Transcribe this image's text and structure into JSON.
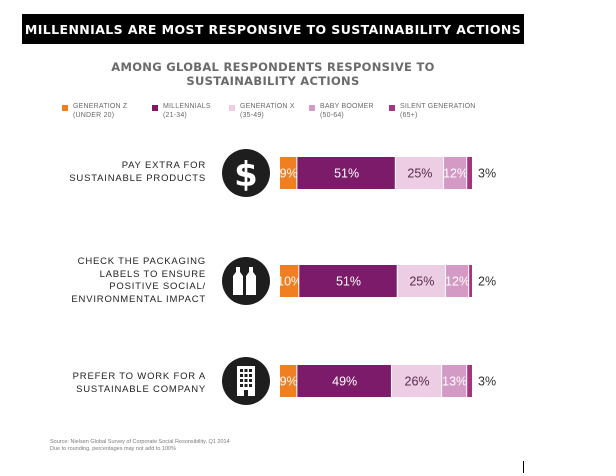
{
  "title": "MILLENNIALS ARE MOST RESPONSIVE TO SUSTAINABILITY ACTIONS",
  "subtitle_lines": [
    "AMONG GLOBAL RESPONDENTS RESPONSIVE TO",
    "SUSTAINABILITY ACTIONS"
  ],
  "legend": [
    {
      "name": "GENERATION Z",
      "range": "(UNDER 20)",
      "color": "#f07f22"
    },
    {
      "name": "MILLENNIALS",
      "range": "(21-34)",
      "color": "#7d1b6b"
    },
    {
      "name": "GENERATION X",
      "range": "(35-49)",
      "color": "#eccde3"
    },
    {
      "name": "BABY BOOMER",
      "range": "(50-64)",
      "color": "#d49ac6"
    },
    {
      "name": "SILENT GENERATION",
      "range": "(65+)",
      "color": "#a4357e"
    }
  ],
  "rows": [
    {
      "label_lines": [
        "PAY EXTRA FOR",
        "SUSTAINABLE PRODUCTS"
      ],
      "icon": "dollar-icon"
    },
    {
      "label_lines": [
        "CHECK THE PACKAGING",
        "LABELS TO ENSURE",
        "POSITIVE SOCIAL/",
        "ENVIRONMENTAL IMPACT"
      ],
      "icon": "bottles-icon"
    },
    {
      "label_lines": [
        "PREFER TO WORK FOR A",
        "SUSTAINABLE COMPANY"
      ],
      "icon": "building-icon"
    }
  ],
  "chart_data": {
    "type": "bar",
    "orientation": "horizontal",
    "stacked": true,
    "categories": [
      "PAY EXTRA FOR SUSTAINABLE PRODUCTS",
      "CHECK THE PACKAGING LABELS TO ENSURE POSITIVE SOCIAL/ ENVIRONMENTAL IMPACT",
      "PREFER TO WORK FOR A SUSTAINABLE COMPANY"
    ],
    "series": [
      {
        "name": "GENERATION Z (UNDER 20)",
        "values": [
          9,
          10,
          9
        ],
        "labels": [
          "9%",
          "10%",
          "9%"
        ],
        "color": "#f07f22"
      },
      {
        "name": "MILLENNIALS (21-34)",
        "values": [
          51,
          51,
          49
        ],
        "labels": [
          "51%",
          "51%",
          "49%"
        ],
        "color": "#7d1b6b"
      },
      {
        "name": "GENERATION X (35-49)",
        "values": [
          25,
          25,
          26
        ],
        "labels": [
          "25%",
          "25%",
          "26%"
        ],
        "color": "#eccde3"
      },
      {
        "name": "BABY BOOMER (50-64)",
        "values": [
          12,
          12,
          13
        ],
        "labels": [
          "12%",
          "12%",
          "13%"
        ],
        "color": "#d49ac6"
      },
      {
        "name": "SILENT GENERATION (65+)",
        "values": [
          3,
          2,
          3
        ],
        "labels": [
          "3%",
          "2%",
          "3%"
        ],
        "color": "#a4357e"
      }
    ],
    "xlim": [
      0,
      100
    ],
    "grid": false,
    "legend_position": "top"
  },
  "footnote_lines": [
    "Source: Nielsen Global Survey of Corporate Social Resonsibility, Q1 2014",
    "Due to rounding, percentages may not add to 100%"
  ]
}
